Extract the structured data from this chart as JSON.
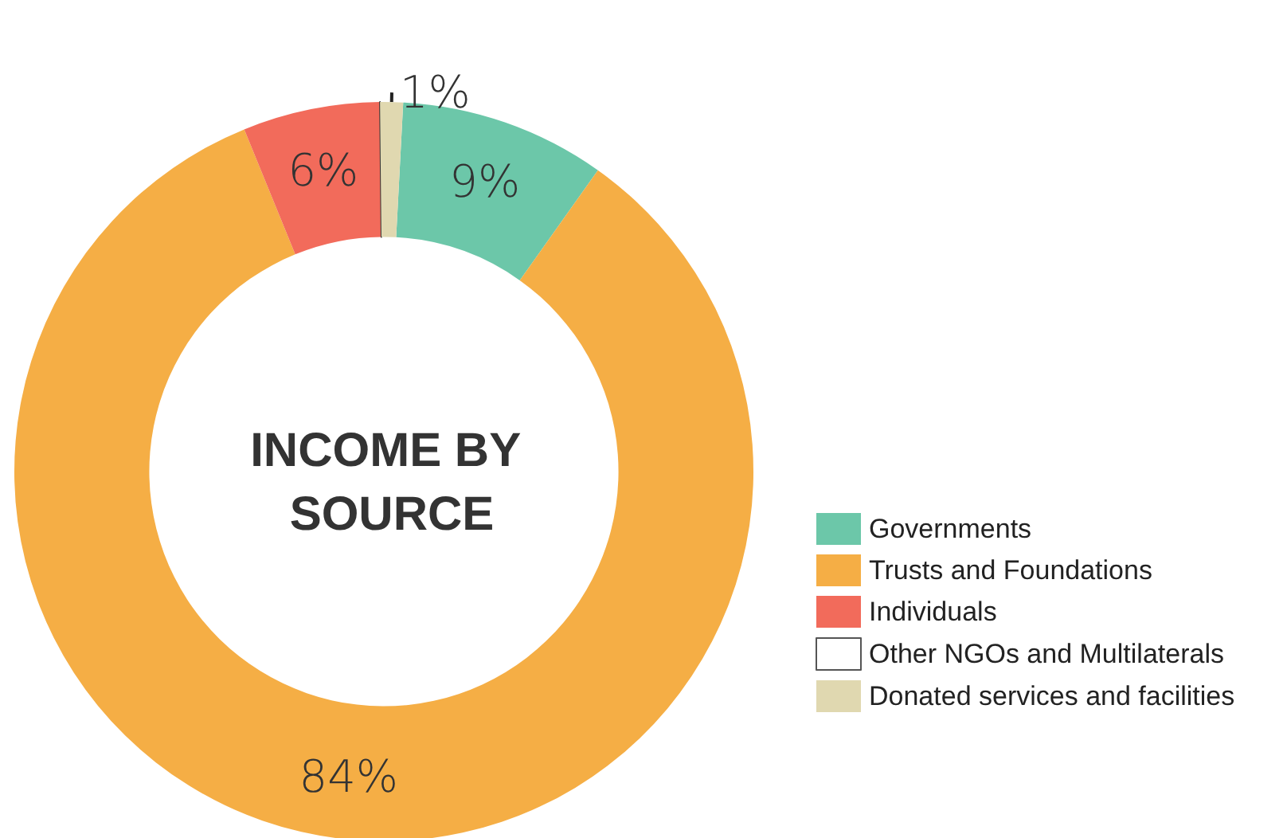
{
  "chart_data": {
    "type": "donut",
    "title": "INCOME BY SOURCE",
    "categories": [
      "Governments",
      "Trusts and Foundations",
      "Individuals",
      "Other NGOs and Multilaterals",
      "Donated services and facilities"
    ],
    "values": [
      9,
      84,
      6,
      0,
      1
    ],
    "colors": [
      "#6cc7a9",
      "#f5ae45",
      "#f26b5b",
      "#ffffff",
      "#e0d8b0"
    ],
    "value_labels": [
      "9%",
      "84%",
      "6%",
      null,
      "1%"
    ],
    "legend": "bottom right"
  }
}
